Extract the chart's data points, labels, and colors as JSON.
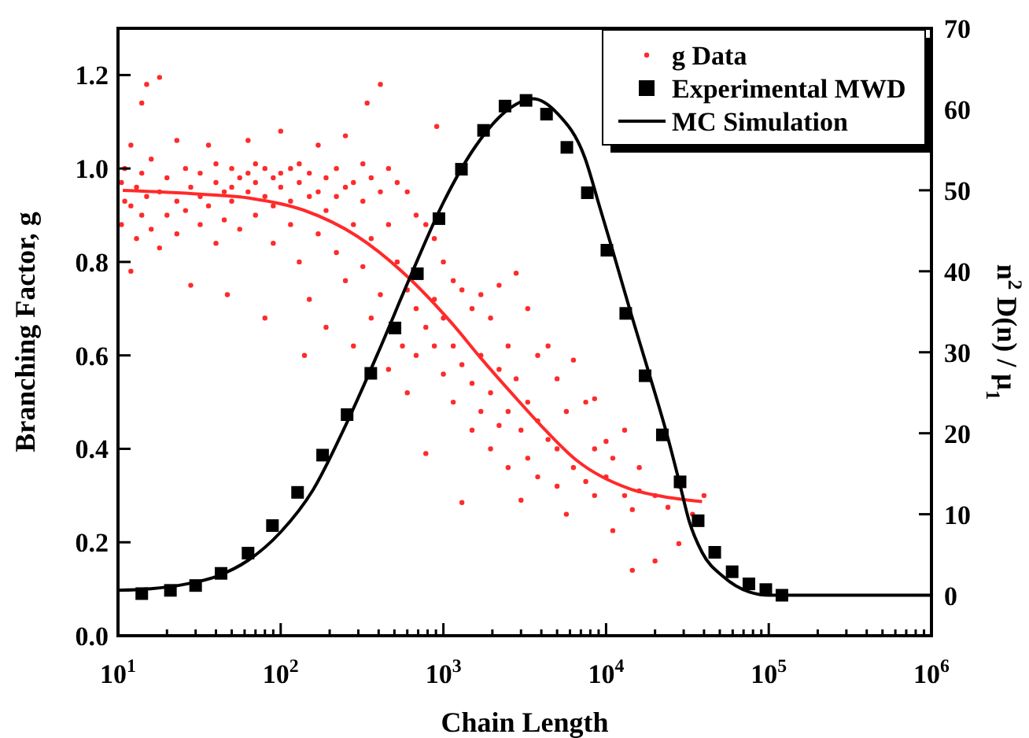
{
  "chart_data": {
    "type": "scatter",
    "xlabel": "Chain Length",
    "ylabel": "Branching Factor, g",
    "y2label": "n$^{2}$ D(n) / μ$_{1}$",
    "log": "x",
    "legend": "top right",
    "grid": false,
    "xlim": [
      10,
      1000000
    ],
    "xticks": [
      {
        "value": 10,
        "label": "10$^{1}$"
      },
      {
        "value": 100,
        "label": "10$^{2}$"
      },
      {
        "value": 1000,
        "label": "10$^{3}$"
      },
      {
        "value": 10000,
        "label": "10$^{4}$"
      },
      {
        "value": 100000,
        "label": "10$^{5}$"
      },
      {
        "value": 1000000,
        "label": "10$^{6}$"
      }
    ],
    "ylim": [
      0,
      1.3
    ],
    "yticks": [
      {
        "value": 0,
        "label": "0.0"
      },
      {
        "value": 0.2,
        "label": "0.2"
      },
      {
        "value": 0.4,
        "label": "0.4"
      },
      {
        "value": 0.6,
        "label": "0.6"
      },
      {
        "value": 0.8,
        "label": "0.8"
      },
      {
        "value": 1,
        "label": "1.0"
      },
      {
        "value": 1.2,
        "label": "1.2"
      }
    ],
    "y2lim": [
      -5,
      70
    ],
    "y2ticks": [
      0,
      10,
      20,
      30,
      40,
      50,
      60,
      70
    ],
    "series": [
      {
        "name": "g Data",
        "marker": "circle",
        "color": "#ff2a2a",
        "x": [
          10.5,
          10.5,
          11,
          11,
          12,
          12,
          12,
          13,
          13,
          14,
          14,
          14,
          15,
          15,
          16,
          16,
          18,
          18,
          18,
          20,
          20,
          23,
          23,
          23,
          26,
          26,
          28,
          28,
          32,
          32,
          32,
          36,
          36,
          40,
          40,
          40,
          45,
          45,
          47,
          50,
          50,
          50,
          56,
          56,
          63,
          63,
          63,
          70,
          70,
          70,
          80,
          80,
          80,
          90,
          90,
          90,
          100,
          100,
          100,
          115,
          115,
          115,
          130,
          130,
          130,
          140,
          150,
          150,
          150,
          170,
          170,
          170,
          190,
          190,
          190,
          220,
          220,
          220,
          250,
          250,
          250,
          280,
          280,
          280,
          320,
          320,
          320,
          340,
          360,
          360,
          360,
          410,
          410,
          410,
          460,
          460,
          460,
          520,
          520,
          560,
          600,
          600,
          600,
          680,
          680,
          680,
          780,
          780,
          780,
          880,
          880,
          880,
          910,
          1000,
          1000,
          1000,
          1150,
          1150,
          1150,
          1300,
          1300,
          1300,
          1500,
          1500,
          1500,
          1700,
          1700,
          1700,
          1950,
          1950,
          1950,
          2200,
          2200,
          2200,
          2500,
          2500,
          2500,
          2800,
          2800,
          3000,
          3000,
          3300,
          3300,
          3300,
          3800,
          3800,
          3800,
          4400,
          4400,
          5000,
          5000,
          5000,
          5700,
          5700,
          6300,
          6300,
          7500,
          7500,
          8500,
          8500,
          8500,
          10000,
          10000,
          11000,
          11000,
          13000,
          13000,
          14500,
          14500,
          16000,
          16000,
          20000,
          20000,
          24000,
          28000,
          28000,
          34000,
          40000
        ],
        "values": [
          0.97,
          0.88,
          0.93,
          1.0,
          0.78,
          1.05,
          0.92,
          0.96,
          0.85,
          1.14,
          0.99,
          0.9,
          1.18,
          0.94,
          0.87,
          1.02,
          1.195,
          0.95,
          0.83,
          0.98,
          0.9,
          1.06,
          0.93,
          0.86,
          1.0,
          0.91,
          0.75,
          0.96,
          0.99,
          0.88,
          0.94,
          1.05,
          0.92,
          0.97,
          0.84,
          1.01,
          0.95,
          0.89,
          0.73,
          1.0,
          0.93,
          0.96,
          0.98,
          0.87,
          1.06,
          0.95,
          0.99,
          0.97,
          0.9,
          1.01,
          0.68,
          0.94,
          1.0,
          0.98,
          0.92,
          0.84,
          1.08,
          0.96,
          0.99,
          0.93,
          1.0,
          0.88,
          0.97,
          0.8,
          1.01,
          0.6,
          0.99,
          0.94,
          0.72,
          1.05,
          0.95,
          0.86,
          0.98,
          0.91,
          0.66,
          1.0,
          0.94,
          0.82,
          1.07,
          0.96,
          0.76,
          0.97,
          0.88,
          0.62,
          1.01,
          0.93,
          0.79,
          1.14,
          0.98,
          0.85,
          0.68,
          1.18,
          0.95,
          0.73,
          1.0,
          0.88,
          0.57,
          0.97,
          0.8,
          0.62,
          0.95,
          0.74,
          0.52,
          0.9,
          0.7,
          0.6,
          0.88,
          0.66,
          0.39,
          0.85,
          0.62,
          0.72,
          1.09,
          0.8,
          0.68,
          0.56,
          0.76,
          0.62,
          0.5,
          0.285,
          0.74,
          0.58,
          0.7,
          0.54,
          0.44,
          0.73,
          0.6,
          0.48,
          0.68,
          0.52,
          0.4,
          0.75,
          0.57,
          0.45,
          0.62,
          0.48,
          0.36,
          0.776,
          0.55,
          0.29,
          0.44,
          0.7,
          0.5,
          0.38,
          0.6,
          0.46,
          0.34,
          0.62,
          0.42,
          0.55,
          0.4,
          0.32,
          0.26,
          0.48,
          0.59,
          0.36,
          0.5,
          0.33,
          0.507,
          0.4,
          0.3,
          0.416,
          0.34,
          0.225,
          0.38,
          0.44,
          0.3,
          0.14,
          0.27,
          0.31,
          0.36,
          0.16,
          0.3,
          0.275,
          0.197,
          0.32,
          0.26,
          0.3
        ]
      },
      {
        "type": "line",
        "color": "#ff2a2a",
        "x": [
          10.7,
          32,
          66,
          138,
          295,
          617,
          1120,
          1740,
          2690,
          3980,
          6610,
          13800,
          25100,
          38900
        ],
        "values": [
          0.953,
          0.945,
          0.936,
          0.911,
          0.855,
          0.765,
          0.67,
          0.59,
          0.515,
          0.45,
          0.375,
          0.315,
          0.295,
          0.287
        ]
      },
      {
        "name": "Experimental MWD",
        "type": "scatter",
        "marker": "square",
        "axis": "y2",
        "color": "#000000",
        "x": [
          14,
          21,
          30,
          43,
          63,
          89,
          127,
          181,
          256,
          358,
          504,
          692,
          939,
          1291,
          1766,
          2393,
          3221,
          4305,
          5741,
          7674,
          10116,
          13213,
          17378,
          22182,
          28510,
          36813,
          46559,
          59566,
          75509,
          95940,
          120500
        ],
        "values": [
          0.2,
          0.6,
          1.2,
          2.7,
          5.2,
          8.6,
          12.7,
          17.3,
          22.3,
          27.4,
          33,
          39.7,
          46.5,
          52.6,
          57.4,
          60.4,
          61.1,
          59.4,
          55.3,
          49.7,
          42.6,
          34.8,
          27.1,
          19.8,
          14,
          9.2,
          5.3,
          2.9,
          1.4,
          0.7,
          0
        ]
      },
      {
        "name": "MC Simulation",
        "type": "line",
        "axis": "y2",
        "color": "#000000",
        "x": [
          10,
          16,
          25,
          40,
          63,
          100,
          158,
          251,
          398,
          631,
          1000,
          1585,
          2512,
          3548,
          5012,
          7413,
          9120,
          10965,
          14125,
          18621,
          23714,
          28184,
          32359,
          38905,
          52481,
          75858,
          100000,
          1000000
        ],
        "values": [
          0.6,
          0.8,
          1.3,
          2.3,
          4.3,
          7.8,
          13,
          21,
          30,
          39.5,
          48.5,
          55.5,
          60,
          61.3,
          59.5,
          54,
          48,
          42.6,
          35,
          27,
          19.8,
          14,
          9.2,
          5.3,
          2.3,
          0.4,
          0,
          0
        ]
      }
    ]
  }
}
